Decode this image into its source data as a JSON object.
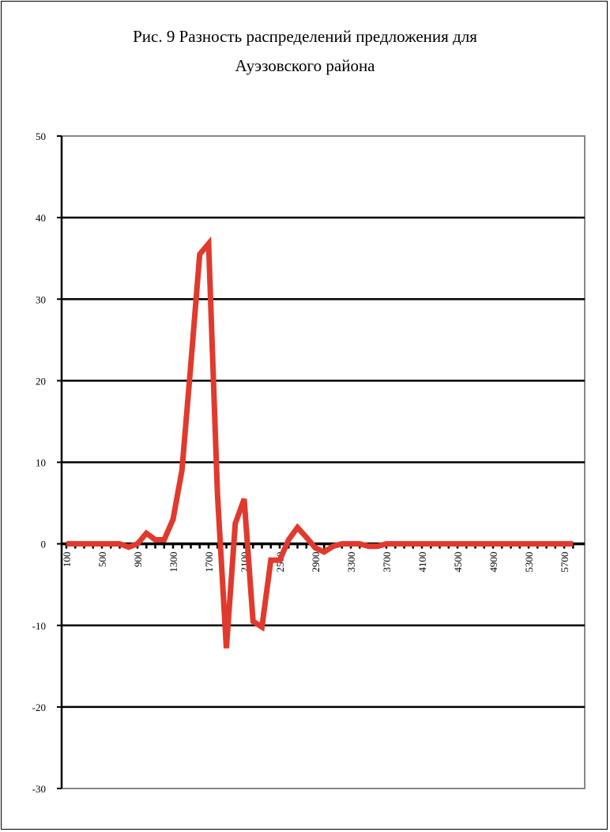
{
  "chart_data": {
    "type": "line",
    "title_line1": "Рис. 9 Разность распределений предложения для",
    "title_line2": "Ауэзовского  района",
    "xlabel": "",
    "ylabel": "",
    "ylim": [
      -30,
      50
    ],
    "yticks": [
      -30,
      -20,
      -10,
      0,
      10,
      20,
      30,
      40,
      50
    ],
    "xtick_labels": [
      "100",
      "500",
      "900",
      "1300",
      "1700",
      "2100",
      "2500",
      "2900",
      "3300",
      "3700",
      "4100",
      "4500",
      "4900",
      "5300",
      "5700"
    ],
    "grid": true,
    "series_color": "#e03a2e",
    "x": [
      100,
      200,
      300,
      400,
      500,
      600,
      700,
      800,
      900,
      1000,
      1100,
      1200,
      1300,
      1400,
      1500,
      1600,
      1700,
      1800,
      1900,
      2000,
      2100,
      2200,
      2300,
      2400,
      2500,
      2600,
      2700,
      2800,
      2900,
      3000,
      3100,
      3200,
      3300,
      3400,
      3500,
      3600,
      3700,
      3800,
      3900,
      4000,
      4100,
      4200,
      4300,
      4400,
      4500,
      4600,
      4700,
      4800,
      4900,
      5000,
      5100,
      5200,
      5300,
      5400,
      5500,
      5600,
      5700,
      5800
    ],
    "values": [
      0,
      0,
      0,
      0,
      0,
      0,
      0,
      -0.4,
      0,
      1.3,
      0.5,
      0.5,
      3,
      9,
      22,
      35.5,
      36.8,
      6,
      -12.8,
      2.5,
      5.5,
      -9.5,
      -10.2,
      -2,
      -2,
      0.5,
      2,
      0.8,
      -0.5,
      -1,
      -0.3,
      0,
      0,
      0,
      -0.3,
      -0.3,
      0,
      0,
      0,
      0,
      0,
      0,
      0,
      0,
      0,
      0,
      0,
      0,
      0,
      0,
      0,
      0,
      0,
      0,
      0,
      0,
      0,
      0
    ]
  }
}
